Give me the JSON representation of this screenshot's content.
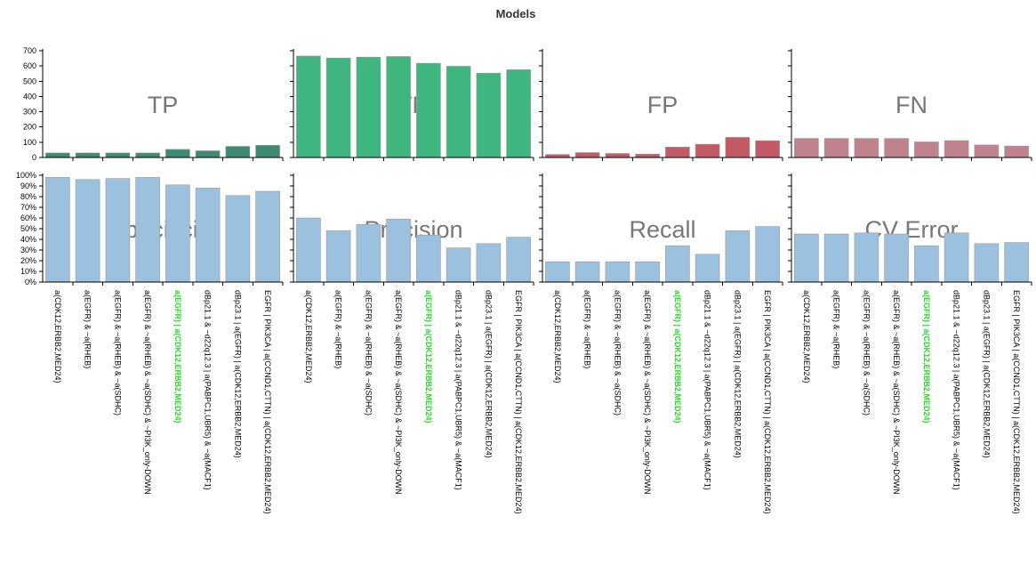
{
  "title": "Models",
  "chart_data": {
    "type": "bar",
    "title": "Models",
    "categories": [
      "a(CDK12,ERBB2,MED24)",
      "a(EGFR) & ~a(RHEB)",
      "a(EGFR) & ~a(RHEB) & ~a(SDHC)",
      "a(EGFR) & ~a(RHEB) & ~a(SDHC) & ~PI3K_only-DOWN",
      "a(EGFR) | a(CDK12,ERBB2,MED24)",
      "dBp21.1 & ~d22q12.3 | a(PABPC1,UBR5) & ~a(MACF1)",
      "dBp23.1 | a(EGFR) | a(CDK12,ERBB2,MED24)",
      "EGFR | PIK3CA | a(CCND1,CTTN) | a(CDK12,ERBB2,MED24)"
    ],
    "highlighted_category_index": 4,
    "count_panels": [
      {
        "name": "TP",
        "color": "#3f8a72",
        "values": [
          30,
          30,
          30,
          30,
          53,
          44,
          73,
          80
        ]
      },
      {
        "name": "TN",
        "color": "#3fb67f",
        "values": [
          665,
          652,
          658,
          662,
          618,
          598,
          553,
          575
        ]
      },
      {
        "name": "FP",
        "color": "#c45a66",
        "values": [
          20,
          32,
          26,
          22,
          68,
          87,
          132,
          110
        ]
      },
      {
        "name": "FN",
        "color": "#c0838d",
        "values": [
          125,
          125,
          125,
          125,
          102,
          111,
          82,
          75
        ]
      }
    ],
    "rate_panels": [
      {
        "name": "Specificity",
        "color": "#9bc1de",
        "values": [
          98,
          96,
          97,
          98,
          91,
          88,
          81,
          85
        ]
      },
      {
        "name": "Precision",
        "color": "#9bc1de",
        "values": [
          60,
          48,
          54,
          59,
          44,
          32,
          36,
          42
        ]
      },
      {
        "name": "Recall",
        "color": "#9bc1de",
        "values": [
          19,
          19,
          19,
          19,
          34,
          26,
          48,
          52
        ]
      },
      {
        "name": "CV Error",
        "color": "#9bc1de",
        "values": [
          45,
          45,
          46,
          45,
          34,
          46,
          36,
          37
        ]
      }
    ],
    "count_axis": {
      "ylim": [
        0,
        700
      ],
      "ticks": [
        "0",
        "100",
        "200",
        "300",
        "400",
        "500",
        "600",
        "700"
      ]
    },
    "rate_axis": {
      "ylim": [
        0,
        100
      ],
      "ticks": [
        "0%",
        "10%",
        "20%",
        "30%",
        "40%",
        "50%",
        "60%",
        "70%",
        "80%",
        "90%",
        "100%"
      ]
    }
  }
}
